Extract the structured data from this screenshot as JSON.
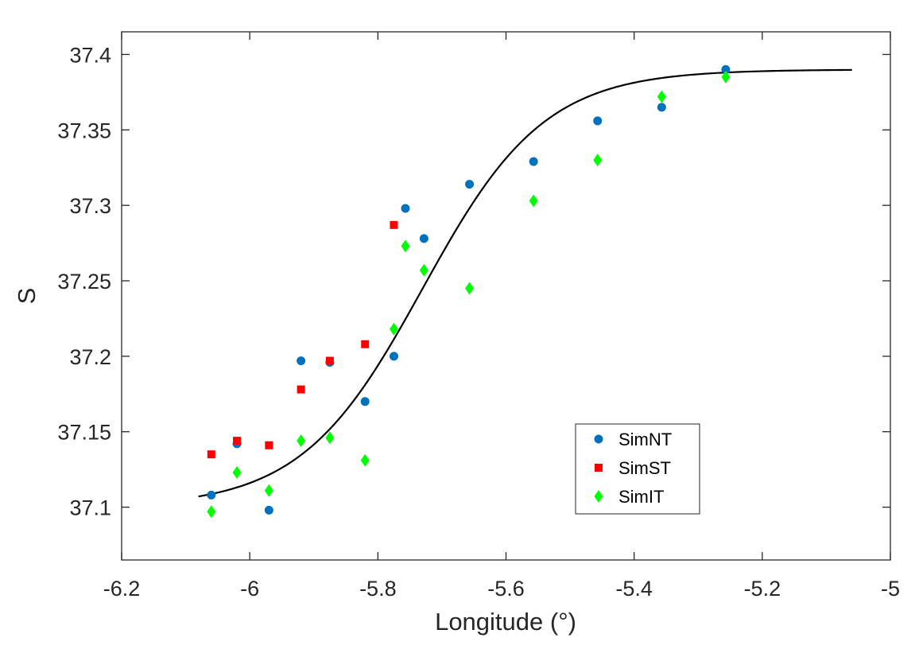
{
  "chart_data": {
    "type": "scatter",
    "title": "",
    "xlabel": "Longitude (°)",
    "ylabel": "S",
    "xlim": [
      -6.2,
      -5.0
    ],
    "ylim": [
      37.065,
      37.415
    ],
    "xticks": [
      -6.2,
      -6.0,
      -5.8,
      -5.6,
      -5.4,
      -5.2,
      -5.0
    ],
    "xtick_labels": [
      "-6.2",
      "-6",
      "-5.8",
      "-5.6",
      "-5.4",
      "-5.2",
      "-5"
    ],
    "yticks": [
      37.1,
      37.15,
      37.2,
      37.25,
      37.3,
      37.35,
      37.4
    ],
    "ytick_labels": [
      "37.1",
      "37.15",
      "37.2",
      "37.25",
      "37.3",
      "37.35",
      "37.4"
    ],
    "grid": false,
    "legend_position": "bottom-right",
    "series": [
      {
        "name": "SimNT",
        "marker": "circle",
        "color": "#0072BD",
        "x": [
          -6.06,
          -6.02,
          -5.97,
          -5.92,
          -5.875,
          -5.82,
          -5.775,
          -5.757,
          -5.728,
          -5.657,
          -5.557,
          -5.457,
          -5.357,
          -5.257
        ],
        "y": [
          37.108,
          37.142,
          37.098,
          37.197,
          37.196,
          37.17,
          37.2,
          37.298,
          37.278,
          37.314,
          37.329,
          37.356,
          37.365,
          37.39
        ]
      },
      {
        "name": "SimST",
        "marker": "square",
        "color": "#FF0000",
        "x": [
          -6.06,
          -6.02,
          -5.97,
          -5.92,
          -5.875,
          -5.82,
          -5.775
        ],
        "y": [
          37.135,
          37.144,
          37.141,
          37.178,
          37.197,
          37.208,
          37.287
        ]
      },
      {
        "name": "SimIT",
        "marker": "diamond",
        "color": "#00FF00",
        "x": [
          -6.06,
          -6.02,
          -5.97,
          -5.92,
          -5.875,
          -5.82,
          -5.775,
          -5.757,
          -5.728,
          -5.657,
          -5.557,
          -5.457,
          -5.357,
          -5.257
        ],
        "y": [
          37.097,
          37.123,
          37.111,
          37.144,
          37.146,
          37.131,
          37.218,
          37.273,
          37.257,
          37.245,
          37.303,
          37.33,
          37.372,
          37.385
        ]
      }
    ],
    "fit_curve": {
      "style": "solid",
      "color": "#000000",
      "type": "sigmoid",
      "x_range": [
        -6.08,
        -5.06
      ],
      "lower": 37.1,
      "upper": 37.39,
      "midpoint": -5.73,
      "scale": 0.095
    }
  }
}
